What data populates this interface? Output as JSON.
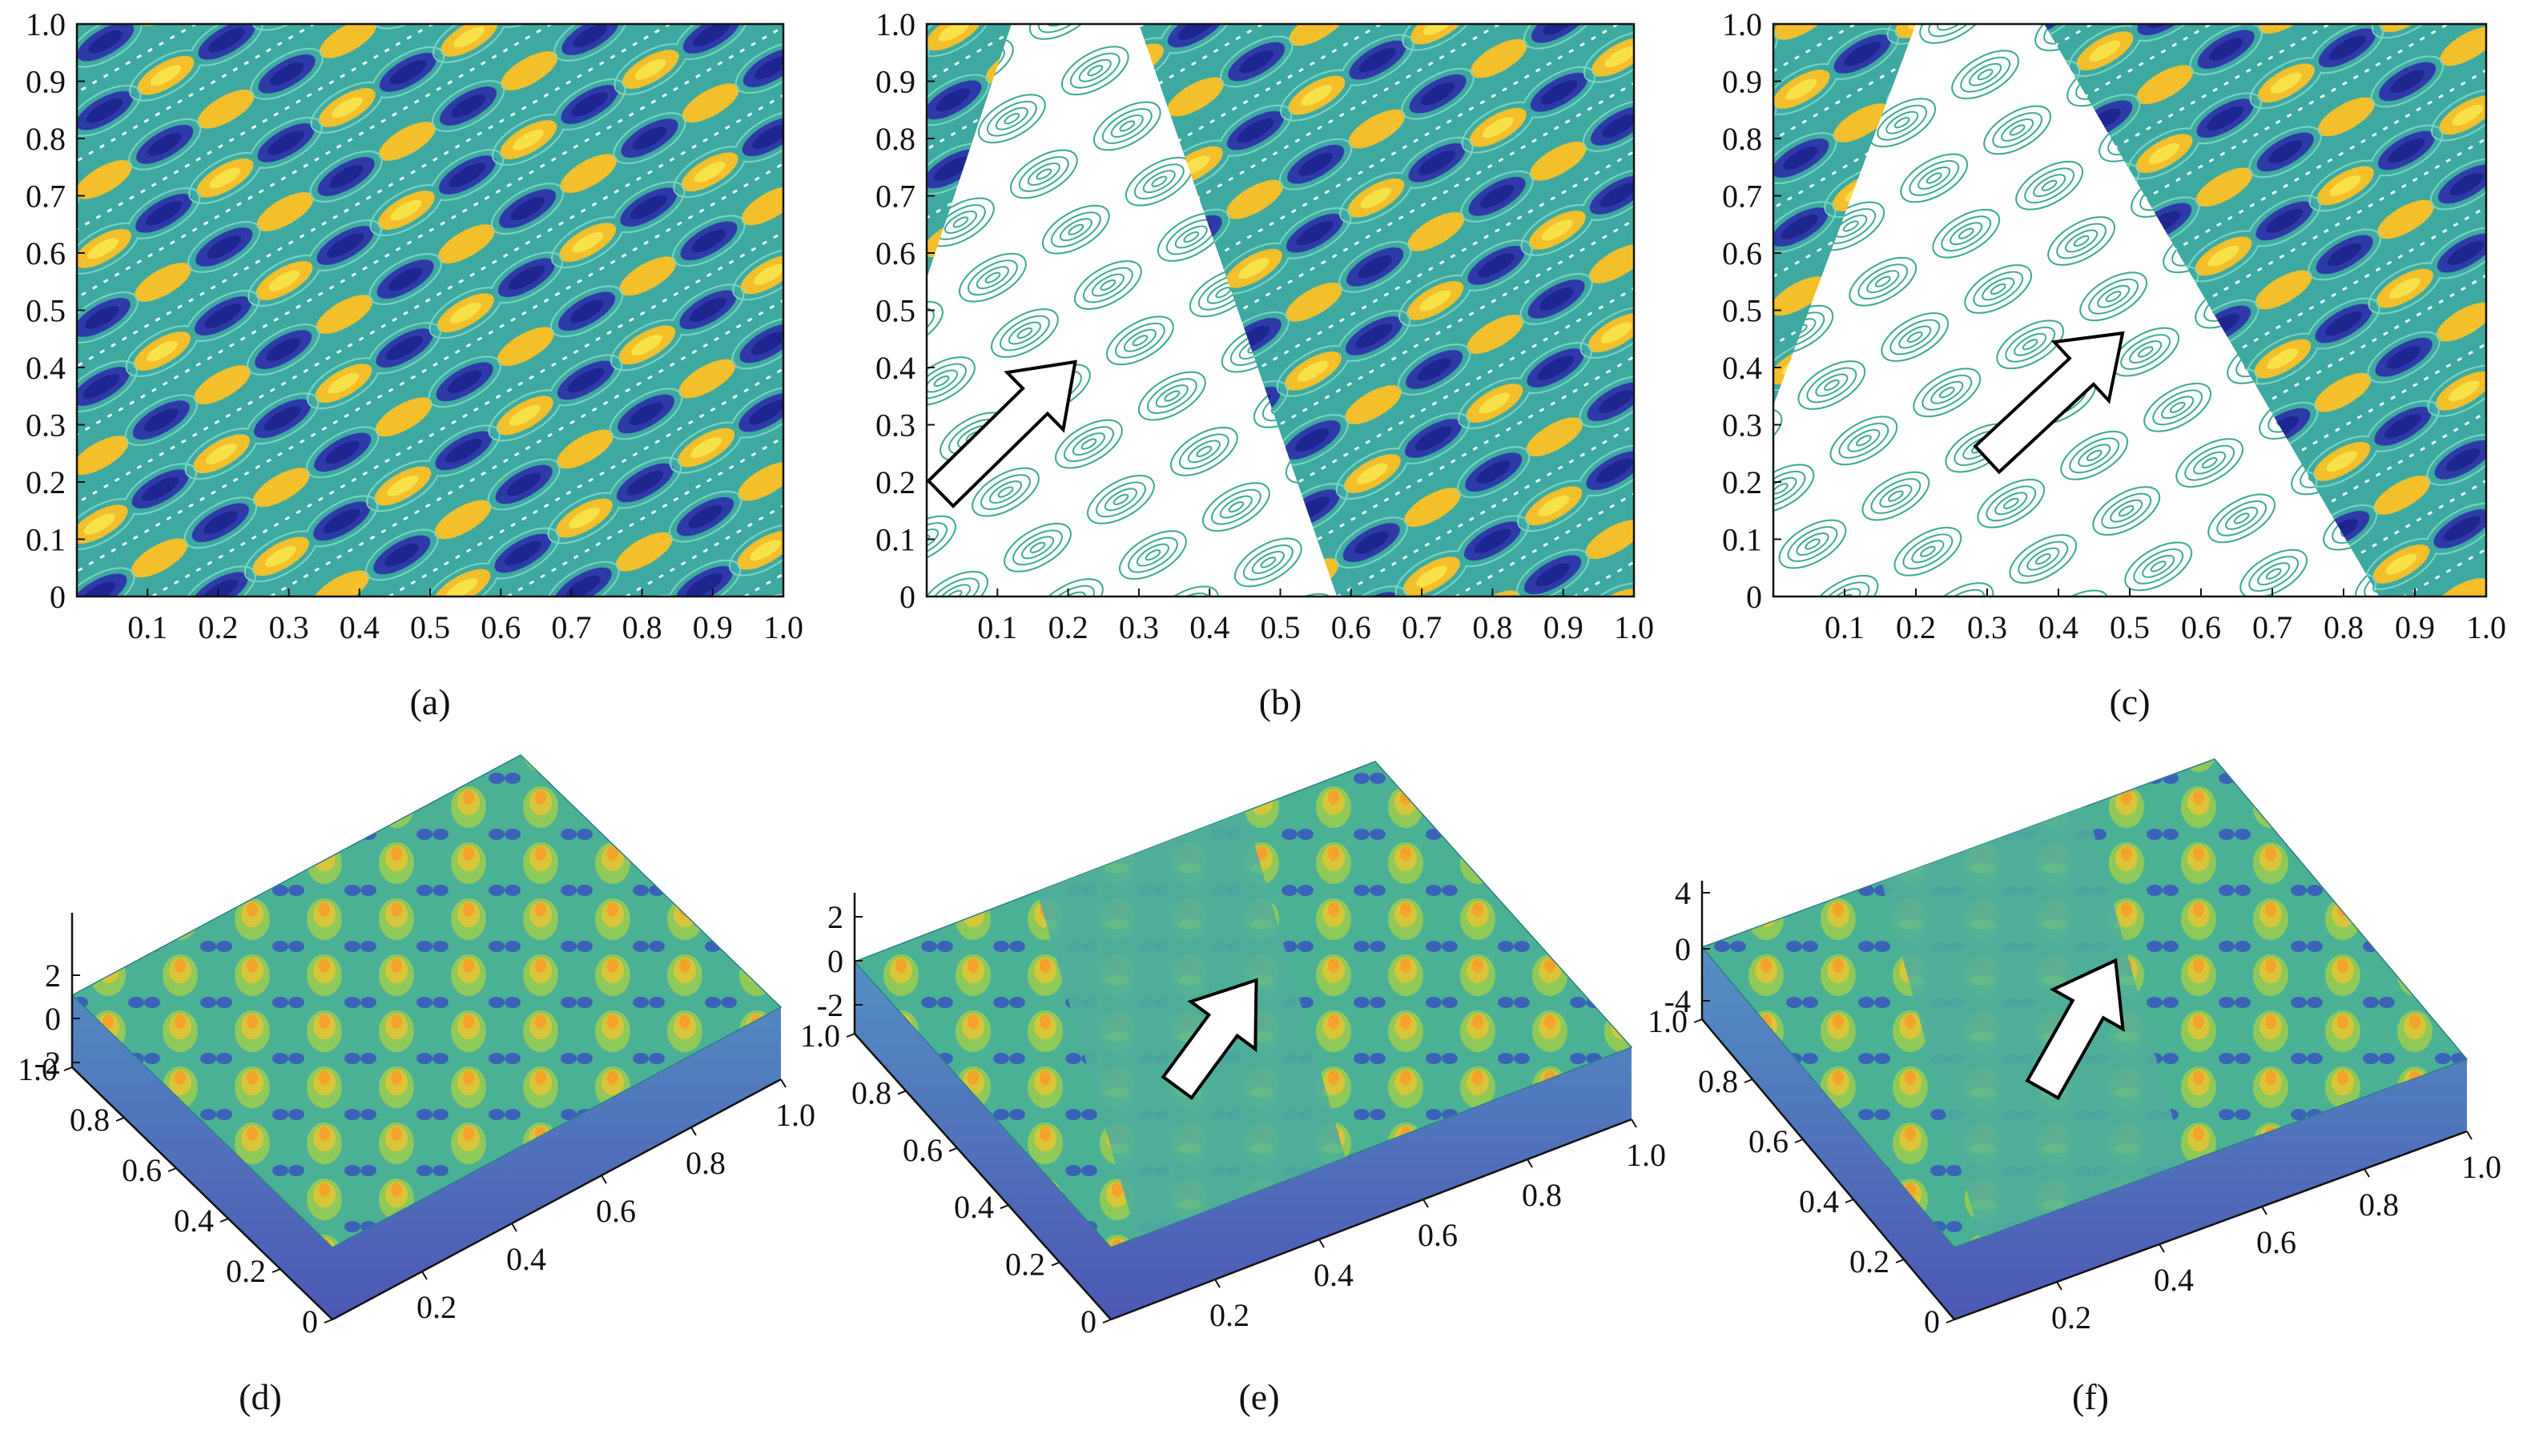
{
  "figure": {
    "panels": [
      {
        "label": "(a)"
      },
      {
        "label": "(b)"
      },
      {
        "label": "(c)"
      },
      {
        "label": "(d)"
      },
      {
        "label": "(e)"
      },
      {
        "label": "(f)"
      }
    ]
  },
  "colors": {
    "low": "#3d3fb8",
    "mid": "#38a6a3",
    "high": "#f5c22c",
    "contour_line": "#4fb39c",
    "arrow_fill": "#ffffff",
    "arrow_stroke": "#000000"
  },
  "chart_data": [
    {
      "panel": "(a)",
      "type": "heatmap",
      "description_shown": "filled contour map of a periodic oscillating field, full texture everywhere",
      "x_ticks": [
        "0.1",
        "0.2",
        "0.3",
        "0.4",
        "0.5",
        "0.6",
        "0.7",
        "0.8",
        "0.9",
        "1.0"
      ],
      "y_ticks": [
        "0",
        "0.1",
        "0.2",
        "0.3",
        "0.4",
        "0.5",
        "0.6",
        "0.7",
        "0.8",
        "0.9",
        "1.0"
      ],
      "xlim": [
        0,
        1
      ],
      "ylim": [
        0,
        1
      ],
      "smooth_band": null,
      "arrow": null
    },
    {
      "panel": "(b)",
      "type": "heatmap",
      "x_ticks": [
        "0.1",
        "0.2",
        "0.3",
        "0.4",
        "0.5",
        "0.6",
        "0.7",
        "0.8",
        "0.9",
        "1.0"
      ],
      "y_ticks": [
        "0",
        "0.1",
        "0.2",
        "0.3",
        "0.4",
        "0.5",
        "0.6",
        "0.7",
        "0.8",
        "0.9",
        "1.0"
      ],
      "xlim": [
        0,
        1
      ],
      "ylim": [
        0,
        1
      ],
      "smooth_band": {
        "left_edge_top_x": 0.12,
        "left_edge_bottom_x": -0.15,
        "right_edge_top_x": 0.3,
        "right_edge_bottom_x": 0.58
      },
      "arrow": {
        "from": [
          0.02,
          0.18
        ],
        "to": [
          0.21,
          0.41
        ]
      }
    },
    {
      "panel": "(c)",
      "type": "heatmap",
      "x_ticks": [
        "0.1",
        "0.2",
        "0.3",
        "0.4",
        "0.5",
        "0.6",
        "0.7",
        "0.8",
        "0.9",
        "1.0"
      ],
      "y_ticks": [
        "0",
        "0.1",
        "0.2",
        "0.3",
        "0.4",
        "0.5",
        "0.6",
        "0.7",
        "0.8",
        "0.9",
        "1.0"
      ],
      "xlim": [
        0,
        1
      ],
      "ylim": [
        0,
        1
      ],
      "smooth_band": {
        "left_edge_top_x": 0.2,
        "left_edge_bottom_x": -0.1,
        "right_edge_top_x": 0.38,
        "right_edge_bottom_x": 0.85
      },
      "arrow": {
        "from": [
          0.3,
          0.24
        ],
        "to": [
          0.49,
          0.46
        ]
      }
    },
    {
      "panel": "(d)",
      "type": "surface",
      "z_ticks": [
        "2",
        "0",
        "-2"
      ],
      "y_ticks": [
        "1.0",
        "0.8",
        "0.6",
        "0.4",
        "0.2",
        "0"
      ],
      "x_ticks": [
        "0.2",
        "0.4",
        "0.6",
        "0.8",
        "1.0"
      ],
      "zlim": [
        -3,
        3
      ],
      "arrow": null
    },
    {
      "panel": "(e)",
      "type": "surface",
      "z_ticks": [
        "2",
        "0",
        "-2"
      ],
      "y_ticks": [
        "1.0",
        "0.8",
        "0.6",
        "0.4",
        "0.2",
        "0"
      ],
      "x_ticks": [
        "0.2",
        "0.4",
        "0.6",
        "0.8",
        "1.0"
      ],
      "zlim": [
        -3,
        3
      ],
      "arrow": {
        "from": [
          0.3,
          0.35
        ],
        "to": [
          0.55,
          0.55
        ]
      }
    },
    {
      "panel": "(f)",
      "type": "surface",
      "z_ticks": [
        "4",
        "0",
        "-4"
      ],
      "y_ticks": [
        "1.0",
        "0.8",
        "0.6",
        "0.4",
        "0.2",
        "0"
      ],
      "x_ticks": [
        "0.2",
        "0.4",
        "0.6",
        "0.8",
        "1.0"
      ],
      "zlim": [
        -5,
        5
      ],
      "arrow": {
        "from": [
          0.33,
          0.32
        ],
        "to": [
          0.6,
          0.58
        ]
      }
    }
  ]
}
